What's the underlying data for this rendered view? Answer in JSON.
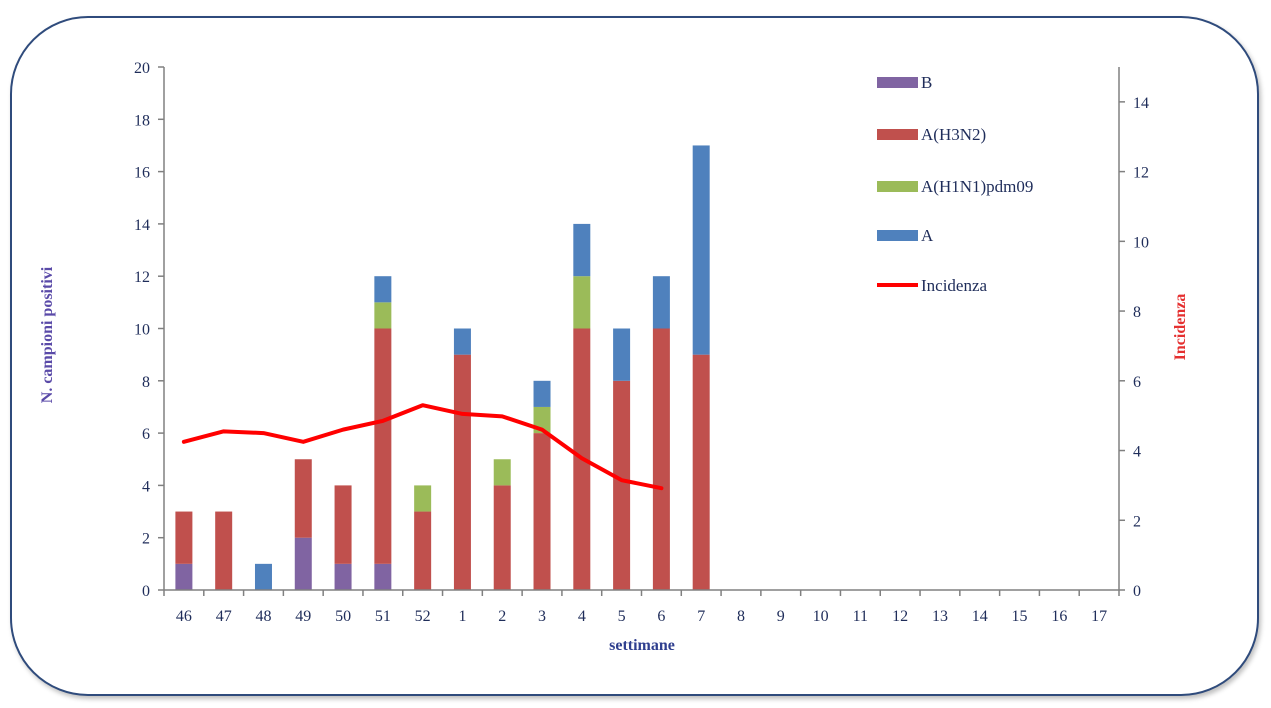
{
  "chart_data": {
    "type": "bar",
    "stacked": true,
    "categories": [
      "46",
      "47",
      "48",
      "49",
      "50",
      "51",
      "52",
      "1",
      "2",
      "3",
      "4",
      "5",
      "6",
      "7",
      "8",
      "9",
      "10",
      "11",
      "12",
      "13",
      "14",
      "15",
      "16",
      "17"
    ],
    "xlabel": "settimane",
    "ylabel": "N. campioni positivi",
    "y2label": "Incidenza",
    "ylim": [
      0,
      20
    ],
    "yticks": [
      0,
      2,
      4,
      6,
      8,
      10,
      12,
      14,
      16,
      18,
      20
    ],
    "y2lim": [
      0,
      15
    ],
    "y2ticks": [
      0,
      2,
      4,
      6,
      8,
      10,
      12,
      14
    ],
    "grid": false,
    "legend_position": "top-right",
    "series": [
      {
        "name": "B",
        "type": "bar",
        "color": "#8064a2",
        "values": [
          1,
          0,
          0,
          2,
          1,
          1,
          0,
          0,
          0,
          0,
          0,
          0,
          0,
          0,
          0,
          0,
          0,
          0,
          0,
          0,
          0,
          0,
          0,
          0
        ]
      },
      {
        "name": "A(H3N2)",
        "type": "bar",
        "color": "#c0504d",
        "values": [
          2,
          3,
          0,
          3,
          3,
          9,
          3,
          9,
          4,
          6,
          10,
          8,
          10,
          9,
          0,
          0,
          0,
          0,
          0,
          0,
          0,
          0,
          0,
          0
        ]
      },
      {
        "name": "A(H1N1)pdm09",
        "type": "bar",
        "color": "#9bbb59",
        "values": [
          0,
          0,
          0,
          0,
          0,
          1,
          1,
          0,
          1,
          1,
          2,
          0,
          0,
          0,
          0,
          0,
          0,
          0,
          0,
          0,
          0,
          0,
          0,
          0
        ]
      },
      {
        "name": "A",
        "type": "bar",
        "color": "#4f81bd",
        "values": [
          0,
          0,
          1,
          0,
          0,
          1,
          0,
          1,
          0,
          1,
          2,
          2,
          2,
          8,
          0,
          0,
          0,
          0,
          0,
          0,
          0,
          0,
          0,
          0
        ]
      },
      {
        "name": "Incidenza",
        "type": "line",
        "axis": "right",
        "color": "#ff0000",
        "values": [
          4.25,
          4.55,
          4.5,
          4.25,
          4.6,
          4.85,
          5.3,
          5.05,
          4.98,
          4.6,
          3.78,
          3.15,
          2.92,
          null,
          null,
          null,
          null,
          null,
          null,
          null,
          null,
          null,
          null,
          null
        ]
      }
    ]
  }
}
